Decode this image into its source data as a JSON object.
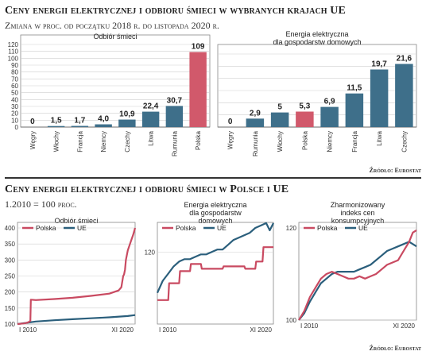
{
  "header1": {
    "title": "Ceny energii elektrycznej i odbioru śmieci w wybranych krajach UE",
    "subtitle": "Zmiana w proc. od początku 2018 r. do listopada 2020 r."
  },
  "header2": {
    "title": "Ceny energii elektrycznej i odbioru śmieci w Polsce i UE",
    "subtitle": "1.2010 = 100 proc."
  },
  "source1": "Źródło: Eurostat",
  "source2": "Źródło: Eurostat",
  "colors": {
    "highlight": "#d1596b",
    "bar": "#3e6f8a",
    "line_pl": "#c94a61",
    "line_eu": "#2b5f7c"
  },
  "chart_data": [
    {
      "type": "bar",
      "title": "Odbiór śmieci",
      "categories": [
        "Węgry",
        "Włochy",
        "Francja",
        "Niemcy",
        "Czechy",
        "Litwa",
        "Rumunia",
        "Polska"
      ],
      "values": [
        0,
        1.5,
        1.7,
        4.0,
        10.9,
        22.4,
        30.7,
        109
      ],
      "labels": [
        "0",
        "1,5",
        "1,7",
        "4,0",
        "10,9",
        "22,4",
        "30,7",
        "109"
      ],
      "highlight": "Polska",
      "ylim": [
        0,
        120
      ],
      "yticks": [
        0,
        10,
        20,
        30,
        40,
        50,
        60,
        70,
        80,
        90,
        100,
        110,
        120
      ],
      "grid": true
    },
    {
      "type": "bar",
      "title": "Energia elektryczna dla gospodarstw domowych",
      "categories": [
        "Węgry",
        "Rumunia",
        "Włochy",
        "Polska",
        "Niemcy",
        "Francja",
        "Litwa",
        "Czechy"
      ],
      "values": [
        0,
        2.9,
        5,
        5.3,
        6.9,
        11.5,
        19.7,
        21.6
      ],
      "labels": [
        "0",
        "2,9",
        "5",
        "5,3",
        "6,9",
        "11,5",
        "19,7",
        "21,6"
      ],
      "highlight": "Polska",
      "ylim": [
        0,
        25
      ],
      "grid": true
    },
    {
      "type": "line",
      "title": "Odbiór śmieci",
      "xlabels": [
        "I 2010",
        "XI 2020"
      ],
      "ylim": [
        100,
        400
      ],
      "yticks": [
        100,
        150,
        200,
        250,
        300,
        350,
        400
      ],
      "legend": "top-left",
      "series": [
        {
          "name": "Polska",
          "x": [
            0,
            7,
            10,
            12,
            14,
            14.5,
            20,
            40,
            60,
            80,
            100,
            110,
            113,
            115,
            116,
            117,
            118,
            120,
            123,
            126,
            128
          ],
          "values": [
            100,
            102,
            104,
            106,
            110,
            176,
            175,
            178,
            182,
            188,
            195,
            205,
            215,
            250,
            255,
            270,
            300,
            330,
            355,
            380,
            400
          ]
        },
        {
          "name": "UE",
          "x": [
            0,
            20,
            40,
            60,
            80,
            100,
            120,
            128
          ],
          "values": [
            100,
            108,
            112,
            115,
            118,
            121,
            125,
            128
          ]
        }
      ]
    },
    {
      "type": "line",
      "title": "Energia elektryczna dla gospodarstw domowych",
      "xlabels": [
        "I 2010",
        "XI 2020"
      ],
      "ylim": [
        90,
        130
      ],
      "yticks": [
        120
      ],
      "legend": "top-left",
      "series": [
        {
          "name": "Polska",
          "x": [
            0,
            12,
            13,
            24,
            25,
            36,
            37,
            48,
            49,
            60,
            61,
            72,
            73,
            84,
            85,
            96,
            97,
            108,
            109,
            116,
            117,
            128
          ],
          "values": [
            100,
            100,
            107,
            107,
            112,
            112,
            115,
            115,
            113,
            113,
            113,
            113,
            114,
            114,
            114,
            114,
            113,
            113,
            116,
            116,
            122,
            122
          ]
        },
        {
          "name": "UE",
          "x": [
            0,
            6,
            12,
            18,
            24,
            30,
            36,
            42,
            48,
            54,
            60,
            66,
            72,
            78,
            84,
            90,
            96,
            102,
            108,
            114,
            120,
            124,
            128
          ],
          "values": [
            103,
            108,
            111,
            114,
            116,
            117,
            117,
            118,
            119,
            119,
            120,
            121,
            121,
            123,
            125,
            126,
            127,
            128,
            130,
            131,
            132,
            129,
            132
          ]
        }
      ]
    },
    {
      "type": "line",
      "title": "Zharmonizowany indeks cen konsumpcyjnych",
      "xlabels": [
        "I 2010",
        "XI 2020"
      ],
      "ylim": [
        100,
        120
      ],
      "yticks": [
        100,
        120
      ],
      "legend": "top-left",
      "series": [
        {
          "name": "Polska",
          "x": [
            0,
            6,
            12,
            18,
            24,
            30,
            36,
            42,
            48,
            54,
            60,
            66,
            72,
            78,
            84,
            90,
            96,
            102,
            108,
            114,
            120,
            124,
            128
          ],
          "values": [
            100,
            102,
            105,
            107,
            109,
            110,
            110.5,
            110,
            109.5,
            109,
            109,
            109.5,
            109,
            109.5,
            110,
            111,
            112,
            112.5,
            113,
            115,
            117,
            119,
            119.5
          ]
        },
        {
          "name": "UE",
          "x": [
            0,
            6,
            12,
            18,
            24,
            30,
            36,
            42,
            48,
            54,
            60,
            66,
            72,
            78,
            84,
            90,
            96,
            102,
            108,
            114,
            120,
            124,
            128
          ],
          "values": [
            100,
            101.5,
            104,
            106,
            108,
            109,
            110,
            110.5,
            110.5,
            110.5,
            110.5,
            111,
            111.5,
            112,
            113,
            114,
            115,
            115.5,
            116,
            116.5,
            117,
            116.5,
            116
          ]
        }
      ]
    }
  ]
}
